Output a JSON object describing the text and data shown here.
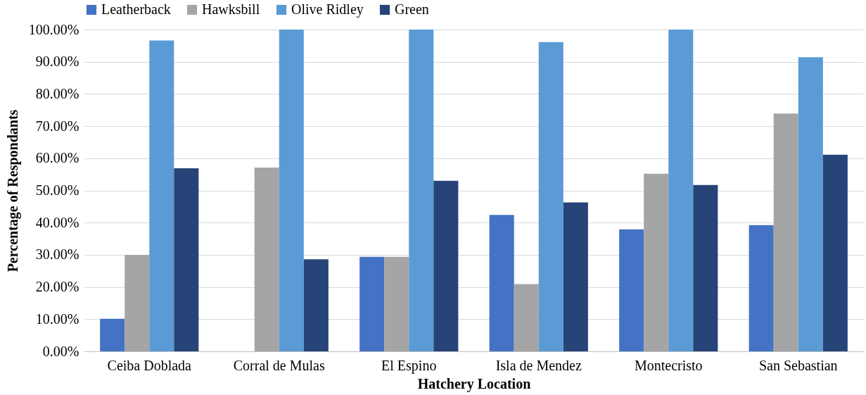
{
  "chart_data": {
    "type": "bar",
    "xlabel": "Hatchery Location",
    "ylabel": "Percentage of Respondants",
    "categories": [
      "Ceiba Doblada",
      "Corral de Mulas",
      "El Espino",
      "Isla de Mendez",
      "Montecristo",
      "San Sebastian"
    ],
    "series": [
      {
        "name": "Leatherback",
        "color": "#4472c4",
        "values": [
          10.1,
          0,
          29.4,
          42.4,
          37.9,
          39.2
        ]
      },
      {
        "name": "Hawksbill",
        "color": "#a5a5a5",
        "values": [
          30.0,
          57.1,
          29.4,
          20.9,
          55.2,
          73.9
        ]
      },
      {
        "name": "Olive Ridley",
        "color": "#5b9bd5",
        "values": [
          96.6,
          100,
          100,
          96.1,
          100,
          91.4
        ]
      },
      {
        "name": "Green",
        "color": "#264478",
        "values": [
          56.9,
          28.6,
          53.0,
          46.3,
          51.7,
          61.1
        ]
      }
    ],
    "ylim": [
      0,
      100
    ],
    "yticks": [
      {
        "value": 0,
        "label": "0.00%"
      },
      {
        "value": 10,
        "label": "10.00%"
      },
      {
        "value": 20,
        "label": "20.00%"
      },
      {
        "value": 30,
        "label": "30.00%"
      },
      {
        "value": 40,
        "label": "40.00%"
      },
      {
        "value": 50,
        "label": "50.00%"
      },
      {
        "value": 60,
        "label": "60.00%"
      },
      {
        "value": 70,
        "label": "70.00%"
      },
      {
        "value": 80,
        "label": "80.00%"
      },
      {
        "value": 90,
        "label": "90.00%"
      },
      {
        "value": 100,
        "label": "100.00%"
      }
    ],
    "grid": "y",
    "legend": "top"
  }
}
